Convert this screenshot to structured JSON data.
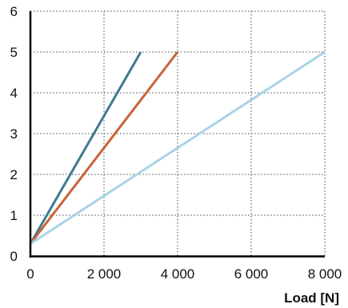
{
  "chart_data": {
    "type": "line",
    "title": "",
    "xlabel": "Load [N]",
    "ylabel": "",
    "xlim": [
      0,
      8000
    ],
    "ylim": [
      0,
      6
    ],
    "x_ticks": [
      0,
      2000,
      4000,
      6000,
      8000
    ],
    "x_tick_labels": [
      "0",
      "2 000",
      "4 000",
      "6 000",
      "8 000"
    ],
    "y_ticks": [
      0,
      1,
      2,
      3,
      4,
      5,
      6
    ],
    "y_tick_labels": [
      "0",
      "1",
      "2",
      "3",
      "4",
      "5",
      "6"
    ],
    "grid": true,
    "legend": "none",
    "series": [
      {
        "color": "#3f7a90",
        "x": [
          0,
          3000
        ],
        "y": [
          0.3,
          5
        ]
      },
      {
        "color": "#c9633a",
        "x": [
          0,
          4000
        ],
        "y": [
          0.3,
          5
        ]
      },
      {
        "color": "#a9d3e6",
        "x": [
          0,
          8000
        ],
        "y": [
          0.3,
          5
        ]
      }
    ]
  }
}
